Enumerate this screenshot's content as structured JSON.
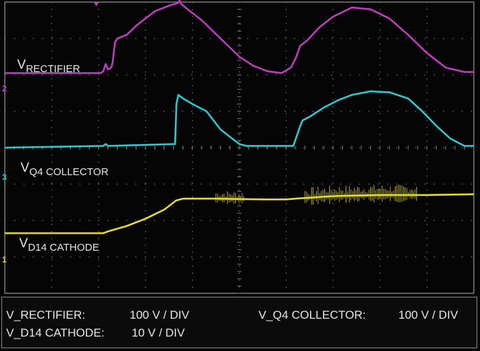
{
  "chart_data": {
    "type": "line",
    "title": "",
    "xlabel": "",
    "ylabel": "",
    "grid": true,
    "grid_divisions": {
      "x": 10,
      "y": 8
    },
    "xlim": [
      0,
      10
    ],
    "ylim": [
      -4,
      4
    ],
    "series": [
      {
        "name": "V_RECTIFIER",
        "label_main": "V",
        "label_sub": "RECTIFIER",
        "channel_marker": "2",
        "color": "#c03cc0",
        "scale": "100 V / DIV",
        "x": [
          0.0,
          2.05,
          2.1,
          2.15,
          2.2,
          2.27,
          2.3,
          2.35,
          2.4,
          2.5,
          2.6,
          2.8,
          3.2,
          3.5,
          3.7,
          3.73,
          3.76,
          3.9,
          4.2,
          4.6,
          5.0,
          5.3,
          5.6,
          5.9,
          6.1,
          6.2,
          6.3,
          6.45,
          6.7,
          7.0,
          7.4,
          7.8,
          8.2,
          8.6,
          9.0,
          9.4,
          9.8,
          10.0
        ],
        "y": [
          2.05,
          2.05,
          2.1,
          2.3,
          2.15,
          2.2,
          2.35,
          2.9,
          3.0,
          3.05,
          3.1,
          3.35,
          3.75,
          3.9,
          3.98,
          4.05,
          3.95,
          3.8,
          3.5,
          3.0,
          2.5,
          2.25,
          2.1,
          2.05,
          2.2,
          2.45,
          2.8,
          2.95,
          3.3,
          3.6,
          3.85,
          3.8,
          3.55,
          3.1,
          2.6,
          2.2,
          2.08,
          2.08
        ]
      },
      {
        "name": "V_Q4 COLLECTOR",
        "label_main": "V",
        "label_sub": "Q4 COLLECTOR",
        "channel_marker": "3",
        "color": "#2ec9d2",
        "scale": "100 V / DIV",
        "x": [
          0.0,
          2.1,
          2.15,
          2.2,
          3.63,
          3.66,
          3.7,
          3.8,
          4.0,
          4.3,
          4.45,
          4.6,
          4.8,
          5.0,
          5.15,
          5.3,
          5.6,
          6.15,
          6.3,
          6.35,
          6.5,
          6.8,
          7.1,
          7.4,
          7.8,
          8.2,
          8.6,
          8.9,
          9.2,
          9.5,
          9.8,
          10.0
        ],
        "y": [
          0.0,
          0.05,
          0.1,
          0.05,
          0.1,
          1.2,
          1.45,
          1.35,
          1.2,
          1.0,
          0.75,
          0.5,
          0.3,
          0.1,
          0.05,
          0.05,
          0.05,
          0.05,
          0.6,
          0.75,
          0.85,
          1.1,
          1.3,
          1.45,
          1.55,
          1.52,
          1.35,
          1.0,
          0.6,
          0.25,
          0.05,
          0.05
        ]
      },
      {
        "name": "V_D14 CATHODE",
        "label_main": "V",
        "label_sub": "D14 CATHODE",
        "channel_marker": "1",
        "color": "#e8dc2a",
        "scale": "10 V / DIV",
        "x": [
          0.0,
          2.1,
          2.2,
          2.6,
          3.0,
          3.4,
          3.65,
          3.8,
          4.5,
          5.5,
          6.0,
          6.2,
          7.0,
          8.0,
          9.0,
          10.0
        ],
        "y": [
          -2.35,
          -2.35,
          -2.3,
          -2.15,
          -1.95,
          -1.7,
          -1.45,
          -1.4,
          -1.4,
          -1.42,
          -1.42,
          -1.4,
          -1.33,
          -1.3,
          -1.3,
          -1.28
        ]
      }
    ]
  },
  "status_bar": {
    "row1_left_name": "V_RECTIFIER:",
    "row1_left_value": "100 V / DIV",
    "row1_right_name": "V_Q4 COLLECTOR:",
    "row1_right_value": "100 V / DIV",
    "row2_left_name": "V_D14 CATHODE:",
    "row2_left_value": "10 V / DIV"
  },
  "colors": {
    "background": "#050505",
    "grid": "#7a7a7a",
    "frame": "#9a9a9a",
    "text": "#e6e6e6"
  }
}
